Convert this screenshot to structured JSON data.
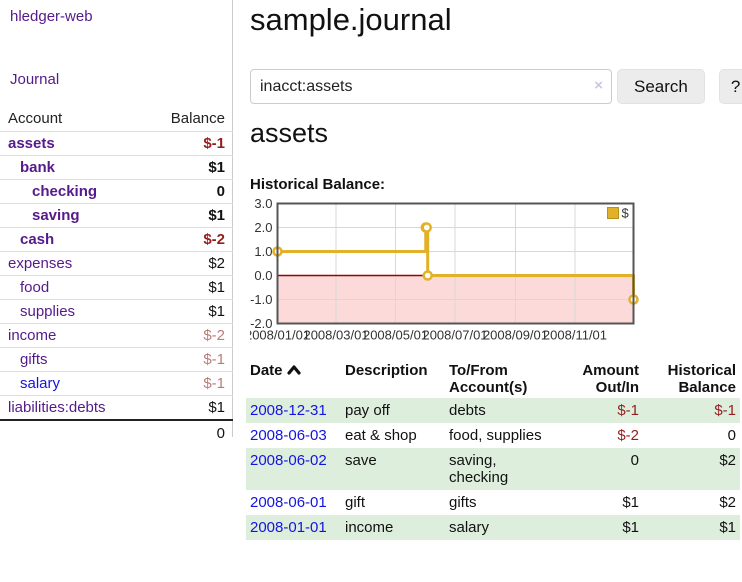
{
  "app": {
    "title": "hledger-web",
    "nav_journal": "Journal"
  },
  "sidebar": {
    "header": {
      "account": "Account",
      "balance": "Balance"
    },
    "rows": [
      {
        "name": "assets",
        "balance": "$-1",
        "indent": 1,
        "bold": true
      },
      {
        "name": "bank",
        "balance": "$1",
        "indent": 2,
        "bold": true
      },
      {
        "name": "checking",
        "balance": "0",
        "indent": 3,
        "bold": true
      },
      {
        "name": "saving",
        "balance": "$1",
        "indent": 3,
        "bold": true
      },
      {
        "name": "cash",
        "balance": "$-2",
        "indent": 2,
        "bold": true
      },
      {
        "name": "expenses",
        "balance": "$2",
        "indent": 1,
        "bold": false
      },
      {
        "name": "food",
        "balance": "$1",
        "indent": 2,
        "bold": false
      },
      {
        "name": "supplies",
        "balance": "$1",
        "indent": 2,
        "bold": false
      },
      {
        "name": "income",
        "balance": "$-2",
        "indent": 1,
        "bold": false
      },
      {
        "name": "gifts",
        "balance": "$-1",
        "indent": 2,
        "bold": false
      },
      {
        "name": "salary",
        "balance": "$-1",
        "indent": 2,
        "bold": false,
        "unvisited": true
      },
      {
        "name": "liabilities:debts",
        "balance": "$1",
        "indent": 1,
        "bold": false
      }
    ],
    "total": "0"
  },
  "main": {
    "title": "sample.journal",
    "search": {
      "value": "inacct:assets",
      "clear_icon": "×",
      "button_label": "Search",
      "help_label": "?"
    },
    "account_title": "assets",
    "chart_heading": "Historical Balance:"
  },
  "chart_data": {
    "type": "line",
    "step": true,
    "title": "Historical Balance of assets",
    "legend": "$",
    "series": [
      {
        "name": "$",
        "points": [
          [
            "2008-01-01",
            1
          ],
          [
            "2008-06-01",
            2
          ],
          [
            "2008-06-02",
            2
          ],
          [
            "2008-06-03",
            0
          ],
          [
            "2008-12-31",
            -1
          ]
        ]
      }
    ],
    "x_domain": [
      "2008-01-01",
      "2008-12-31"
    ],
    "x_ticks": [
      "2008/01/01",
      "2008/03/01",
      "2008/05/01",
      "2008/07/01",
      "2008/09/01",
      "2008/11/01"
    ],
    "y_ticks": [
      "3.0",
      "2.0",
      "1.0",
      "0.0",
      "-1.0",
      "-2.0"
    ],
    "ylim": [
      -2,
      3
    ],
    "grid": true,
    "colors": {
      "line": "#e3b128",
      "marker_fill": "#ffffff",
      "legend_border": "#b8901f",
      "negative_fill": "#fcdada",
      "zero_line": "#990000",
      "grid": "#d8d8d8",
      "border": "#555555",
      "label": "#333333"
    }
  },
  "register": {
    "columns": [
      {
        "label": "Date",
        "sortable": true
      },
      {
        "label": "Description"
      },
      {
        "label": "To/From Account(s)"
      },
      {
        "label": "Amount Out/In",
        "align": "right"
      },
      {
        "label": "Historical Balance",
        "align": "right"
      }
    ],
    "rows": [
      {
        "date": "2008-12-31",
        "description": "pay off",
        "accounts": "debts",
        "amount": "$-1",
        "balance": "$-1",
        "shaded": true
      },
      {
        "date": "2008-06-03",
        "description": "eat & shop",
        "accounts": "food, supplies",
        "amount": "$-2",
        "balance": "0",
        "shaded": false
      },
      {
        "date": "2008-06-02",
        "description": "save",
        "accounts": "saving,\nchecking",
        "amount": "0",
        "balance": "$2",
        "shaded": true
      },
      {
        "date": "2008-06-01",
        "description": "gift",
        "accounts": "gifts",
        "amount": "$1",
        "balance": "$2",
        "shaded": false
      },
      {
        "date": "2008-01-01",
        "description": "income",
        "accounts": "salary",
        "amount": "$1",
        "balance": "$1",
        "shaded": true
      }
    ]
  }
}
